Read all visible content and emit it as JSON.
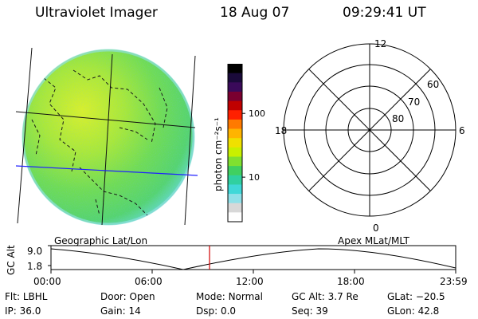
{
  "header": {
    "instrument": "Ultraviolet Imager",
    "date": "18 Aug 07",
    "time": "09:29:41 UT"
  },
  "colorbar": {
    "unit_label": "photon cm⁻²s⁻¹",
    "ticks": [
      {
        "label": "100",
        "value": 100
      },
      {
        "label": "10",
        "value": 10
      }
    ],
    "colors": [
      "#000000",
      "#1a0a3a",
      "#3a0a5a",
      "#7a0030",
      "#c00000",
      "#ff2000",
      "#ff7a00",
      "#ffb400",
      "#f0e000",
      "#c8f000",
      "#80e030",
      "#40d060",
      "#30d0a0",
      "#40d8d8",
      "#90e0e8",
      "#d8d8d8",
      "#ffffff"
    ]
  },
  "image_panel": {
    "caption": "Geographic Lat/Lon"
  },
  "polar_plot": {
    "caption": "Apex MLat/MLT",
    "mlt_labels": {
      "top": "12",
      "bottom": "0",
      "left": "18",
      "right": "6"
    },
    "lat_labels": [
      "60",
      "70",
      "80"
    ]
  },
  "orbit_plot": {
    "ylabel": "GC Alt",
    "y_ticks": [
      "9.0",
      "1.8"
    ],
    "x_ticks": [
      "00:00",
      "06:00",
      "12:00",
      "18:00",
      "23:59"
    ],
    "marker_time": "09:29:41",
    "marker_color": "#d00000"
  },
  "status": {
    "row1": [
      {
        "label": "Flt:",
        "value": "LBHL"
      },
      {
        "label": "Door:",
        "value": "Open"
      },
      {
        "label": "Mode:",
        "value": "Normal"
      },
      {
        "label": "GC Alt:",
        "value": "3.7 Re"
      },
      {
        "label": "GLat:",
        "value": "−20.5"
      }
    ],
    "row2": [
      {
        "label": "IP:",
        "value": "36.0"
      },
      {
        "label": "Gain:",
        "value": "14"
      },
      {
        "label": "Dsp:",
        "value": "0.0"
      },
      {
        "label": "Seq:",
        "value": "39"
      },
      {
        "label": "GLon:",
        "value": "42.8"
      }
    ]
  }
}
